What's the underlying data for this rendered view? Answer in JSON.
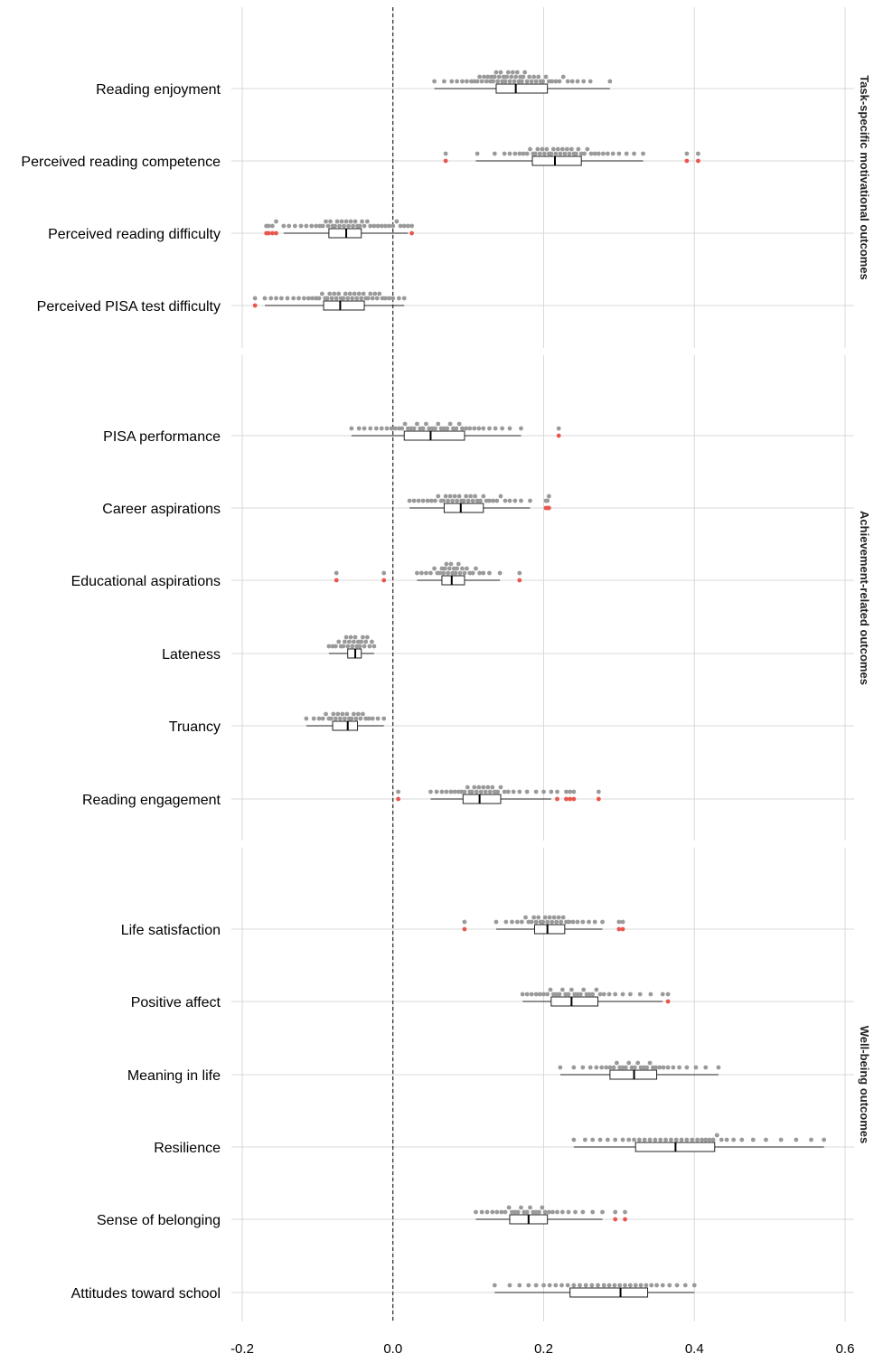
{
  "chart_data": {
    "type": "boxplot-dotplot",
    "x_ticks": [
      -0.2,
      0.0,
      0.2,
      0.4,
      0.6
    ],
    "x_tick_labels": [
      "-0.2",
      "0.0",
      "0.2",
      "0.4",
      "0.6"
    ],
    "xlim": [
      -0.2,
      0.6
    ],
    "reference_line": 0.0,
    "grid": true,
    "colors": {
      "dot": "#9a9a9a",
      "outlier": "#e8574f",
      "grid": "#d9d9d9",
      "axis_text": "#000000"
    },
    "panels": [
      {
        "label": "Task-specific motivational outcomes",
        "rows": [
          {
            "label": "Reading enjoyment",
            "min": 0.055,
            "q1": 0.137,
            "median": 0.163,
            "q3": 0.205,
            "max": 0.288,
            "outliers": [],
            "dots": [
              0.055,
              0.068,
              0.078,
              0.085,
              0.092,
              0.098,
              0.104,
              0.108,
              0.112,
              0.115,
              0.118,
              0.121,
              0.124,
              0.126,
              0.129,
              0.131,
              0.133,
              0.135,
              0.137,
              0.139,
              0.141,
              0.143,
              0.145,
              0.147,
              0.149,
              0.151,
              0.153,
              0.155,
              0.157,
              0.159,
              0.161,
              0.163,
              0.165,
              0.167,
              0.169,
              0.171,
              0.173,
              0.175,
              0.178,
              0.181,
              0.184,
              0.187,
              0.19,
              0.193,
              0.196,
              0.199,
              0.203,
              0.207,
              0.211,
              0.216,
              0.221,
              0.226,
              0.232,
              0.238,
              0.245,
              0.253,
              0.262,
              0.288
            ]
          },
          {
            "label": "Perceived reading competence",
            "min": 0.11,
            "q1": 0.185,
            "median": 0.215,
            "q3": 0.25,
            "max": 0.332,
            "outliers": [
              0.07,
              0.39,
              0.405
            ],
            "dots": [
              0.07,
              0.112,
              0.135,
              0.148,
              0.155,
              0.162,
              0.168,
              0.173,
              0.178,
              0.182,
              0.186,
              0.189,
              0.192,
              0.195,
              0.198,
              0.201,
              0.204,
              0.207,
              0.21,
              0.213,
              0.216,
              0.219,
              0.222,
              0.225,
              0.228,
              0.231,
              0.234,
              0.237,
              0.24,
              0.243,
              0.246,
              0.25,
              0.254,
              0.258,
              0.263,
              0.268,
              0.273,
              0.279,
              0.285,
              0.292,
              0.3,
              0.31,
              0.32,
              0.332,
              0.39,
              0.405
            ]
          },
          {
            "label": "Perceived reading difficulty",
            "min": -0.145,
            "q1": -0.085,
            "median": -0.062,
            "q3": -0.042,
            "max": 0.02,
            "outliers": [
              -0.168,
              -0.165,
              -0.16,
              -0.155,
              0.025
            ],
            "dots": [
              -0.168,
              -0.165,
              -0.16,
              -0.155,
              -0.145,
              -0.138,
              -0.13,
              -0.122,
              -0.115,
              -0.108,
              -0.102,
              -0.097,
              -0.093,
              -0.089,
              -0.086,
              -0.083,
              -0.08,
              -0.077,
              -0.074,
              -0.071,
              -0.068,
              -0.065,
              -0.062,
              -0.059,
              -0.056,
              -0.053,
              -0.05,
              -0.047,
              -0.044,
              -0.041,
              -0.038,
              -0.034,
              -0.03,
              -0.025,
              -0.02,
              -0.015,
              -0.01,
              -0.005,
              0.0,
              0.005,
              0.01,
              0.015,
              0.02,
              0.025
            ]
          },
          {
            "label": "Perceived PISA test difficulty",
            "min": -0.17,
            "q1": -0.092,
            "median": -0.07,
            "q3": -0.038,
            "max": 0.015,
            "outliers": [
              -0.183
            ],
            "dots": [
              -0.183,
              -0.17,
              -0.162,
              -0.155,
              -0.148,
              -0.14,
              -0.132,
              -0.125,
              -0.118,
              -0.112,
              -0.107,
              -0.102,
              -0.098,
              -0.094,
              -0.09,
              -0.087,
              -0.084,
              -0.081,
              -0.078,
              -0.075,
              -0.072,
              -0.069,
              -0.066,
              -0.063,
              -0.06,
              -0.057,
              -0.054,
              -0.051,
              -0.048,
              -0.045,
              -0.042,
              -0.039,
              -0.036,
              -0.033,
              -0.03,
              -0.027,
              -0.024,
              -0.021,
              -0.018,
              -0.014,
              -0.01,
              -0.005,
              0.0,
              0.008,
              0.015
            ]
          }
        ]
      },
      {
        "label": "Achievement-related outcomes",
        "rows": [
          {
            "label": "PISA performance",
            "min": -0.055,
            "q1": 0.015,
            "median": 0.05,
            "q3": 0.095,
            "max": 0.17,
            "outliers": [
              0.22
            ],
            "dots": [
              -0.055,
              -0.045,
              -0.038,
              -0.03,
              -0.022,
              -0.015,
              -0.008,
              -0.002,
              0.003,
              0.008,
              0.012,
              0.016,
              0.02,
              0.024,
              0.028,
              0.032,
              0.036,
              0.04,
              0.044,
              0.048,
              0.052,
              0.056,
              0.06,
              0.064,
              0.068,
              0.072,
              0.076,
              0.08,
              0.084,
              0.088,
              0.092,
              0.097,
              0.102,
              0.108,
              0.114,
              0.12,
              0.128,
              0.136,
              0.145,
              0.155,
              0.17,
              0.22
            ]
          },
          {
            "label": "Career aspirations",
            "min": 0.022,
            "q1": 0.068,
            "median": 0.09,
            "q3": 0.12,
            "max": 0.182,
            "outliers": [
              0.203,
              0.205,
              0.207
            ],
            "dots": [
              0.022,
              0.028,
              0.034,
              0.04,
              0.046,
              0.051,
              0.056,
              0.06,
              0.064,
              0.067,
              0.07,
              0.073,
              0.076,
              0.079,
              0.082,
              0.085,
              0.088,
              0.091,
              0.094,
              0.097,
              0.1,
              0.103,
              0.106,
              0.109,
              0.112,
              0.116,
              0.12,
              0.124,
              0.128,
              0.133,
              0.138,
              0.143,
              0.149,
              0.155,
              0.162,
              0.17,
              0.182,
              0.203,
              0.205,
              0.207
            ]
          },
          {
            "label": "Educational aspirations",
            "min": 0.032,
            "q1": 0.065,
            "median": 0.078,
            "q3": 0.095,
            "max": 0.142,
            "outliers": [
              -0.075,
              -0.012,
              0.168
            ],
            "dots": [
              -0.075,
              -0.012,
              0.032,
              0.038,
              0.044,
              0.05,
              0.055,
              0.059,
              0.062,
              0.065,
              0.067,
              0.069,
              0.071,
              0.073,
              0.075,
              0.077,
              0.079,
              0.081,
              0.083,
              0.085,
              0.087,
              0.089,
              0.092,
              0.095,
              0.098,
              0.102,
              0.106,
              0.11,
              0.115,
              0.12,
              0.128,
              0.142,
              0.168
            ]
          },
          {
            "label": "Lateness",
            "min": -0.085,
            "q1": -0.06,
            "median": -0.05,
            "q3": -0.042,
            "max": -0.025,
            "outliers": [],
            "dots": [
              -0.085,
              -0.08,
              -0.076,
              -0.072,
              -0.069,
              -0.066,
              -0.064,
              -0.062,
              -0.06,
              -0.058,
              -0.056,
              -0.054,
              -0.052,
              -0.05,
              -0.048,
              -0.046,
              -0.044,
              -0.042,
              -0.04,
              -0.038,
              -0.036,
              -0.034,
              -0.031,
              -0.028,
              -0.025
            ]
          },
          {
            "label": "Truancy",
            "min": -0.115,
            "q1": -0.08,
            "median": -0.06,
            "q3": -0.047,
            "max": -0.012,
            "outliers": [],
            "dots": [
              -0.115,
              -0.105,
              -0.098,
              -0.093,
              -0.089,
              -0.085,
              -0.082,
              -0.079,
              -0.076,
              -0.073,
              -0.07,
              -0.067,
              -0.064,
              -0.061,
              -0.058,
              -0.055,
              -0.052,
              -0.049,
              -0.046,
              -0.043,
              -0.04,
              -0.036,
              -0.032,
              -0.027,
              -0.02,
              -0.012
            ]
          },
          {
            "label": "Reading engagement",
            "min": 0.05,
            "q1": 0.093,
            "median": 0.115,
            "q3": 0.143,
            "max": 0.21,
            "outliers": [
              0.007,
              0.218,
              0.23,
              0.235,
              0.24,
              0.273
            ],
            "dots": [
              0.007,
              0.05,
              0.058,
              0.065,
              0.071,
              0.077,
              0.082,
              0.087,
              0.091,
              0.095,
              0.099,
              0.102,
              0.105,
              0.108,
              0.111,
              0.114,
              0.117,
              0.12,
              0.123,
              0.126,
              0.129,
              0.132,
              0.135,
              0.139,
              0.143,
              0.148,
              0.153,
              0.16,
              0.168,
              0.178,
              0.19,
              0.2,
              0.21,
              0.218,
              0.23,
              0.235,
              0.24,
              0.273
            ]
          }
        ]
      },
      {
        "label": "Well-being outcomes",
        "rows": [
          {
            "label": "Life satisfaction",
            "min": 0.137,
            "q1": 0.188,
            "median": 0.205,
            "q3": 0.228,
            "max": 0.278,
            "outliers": [
              0.095,
              0.3,
              0.305
            ],
            "dots": [
              0.095,
              0.137,
              0.15,
              0.158,
              0.165,
              0.171,
              0.176,
              0.18,
              0.184,
              0.187,
              0.19,
              0.193,
              0.196,
              0.199,
              0.202,
              0.205,
              0.208,
              0.211,
              0.214,
              0.217,
              0.22,
              0.223,
              0.226,
              0.23,
              0.234,
              0.239,
              0.245,
              0.252,
              0.26,
              0.268,
              0.278,
              0.3,
              0.305
            ]
          },
          {
            "label": "Positive affect",
            "min": 0.172,
            "q1": 0.21,
            "median": 0.237,
            "q3": 0.272,
            "max": 0.358,
            "outliers": [
              0.365
            ],
            "dots": [
              0.172,
              0.178,
              0.184,
              0.19,
              0.195,
              0.2,
              0.205,
              0.209,
              0.213,
              0.217,
              0.221,
              0.225,
              0.229,
              0.233,
              0.237,
              0.241,
              0.245,
              0.249,
              0.253,
              0.257,
              0.261,
              0.265,
              0.27,
              0.275,
              0.28,
              0.287,
              0.295,
              0.305,
              0.315,
              0.328,
              0.342,
              0.358,
              0.365
            ]
          },
          {
            "label": "Meaning in life",
            "min": 0.222,
            "q1": 0.288,
            "median": 0.32,
            "q3": 0.35,
            "max": 0.432,
            "outliers": [],
            "dots": [
              0.222,
              0.24,
              0.252,
              0.262,
              0.27,
              0.277,
              0.283,
              0.288,
              0.293,
              0.297,
              0.301,
              0.305,
              0.309,
              0.313,
              0.317,
              0.321,
              0.325,
              0.329,
              0.333,
              0.337,
              0.341,
              0.345,
              0.349,
              0.354,
              0.359,
              0.365,
              0.372,
              0.38,
              0.39,
              0.402,
              0.415,
              0.432
            ]
          },
          {
            "label": "Resilience",
            "min": 0.24,
            "q1": 0.322,
            "median": 0.375,
            "q3": 0.427,
            "max": 0.572,
            "outliers": [],
            "dots": [
              0.24,
              0.255,
              0.265,
              0.275,
              0.285,
              0.295,
              0.305,
              0.313,
              0.32,
              0.327,
              0.334,
              0.341,
              0.348,
              0.355,
              0.362,
              0.369,
              0.376,
              0.383,
              0.39,
              0.397,
              0.404,
              0.41,
              0.415,
              0.42,
              0.425,
              0.43,
              0.436,
              0.443,
              0.452,
              0.463,
              0.478,
              0.495,
              0.515,
              0.535,
              0.555,
              0.572
            ]
          },
          {
            "label": "Sense of belonging",
            "min": 0.11,
            "q1": 0.155,
            "median": 0.18,
            "q3": 0.205,
            "max": 0.278,
            "outliers": [
              0.295,
              0.308
            ],
            "dots": [
              0.11,
              0.118,
              0.125,
              0.132,
              0.138,
              0.144,
              0.149,
              0.154,
              0.158,
              0.162,
              0.166,
              0.17,
              0.174,
              0.178,
              0.182,
              0.186,
              0.19,
              0.194,
              0.198,
              0.202,
              0.207,
              0.212,
              0.218,
              0.225,
              0.233,
              0.242,
              0.252,
              0.265,
              0.278,
              0.295,
              0.308
            ]
          },
          {
            "label": "Attitudes toward school",
            "min": 0.135,
            "q1": 0.235,
            "median": 0.302,
            "q3": 0.338,
            "max": 0.4,
            "outliers": [],
            "dots": [
              0.135,
              0.155,
              0.168,
              0.18,
              0.19,
              0.2,
              0.208,
              0.216,
              0.224,
              0.232,
              0.24,
              0.248,
              0.256,
              0.264,
              0.272,
              0.28,
              0.287,
              0.294,
              0.301,
              0.308,
              0.315,
              0.322,
              0.329,
              0.336,
              0.343,
              0.35,
              0.358,
              0.367,
              0.377,
              0.388,
              0.4
            ]
          }
        ]
      }
    ]
  }
}
